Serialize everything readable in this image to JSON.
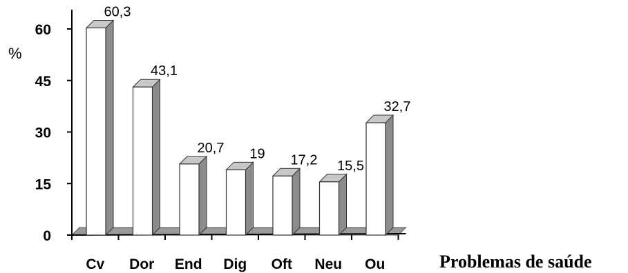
{
  "chart_data": {
    "type": "bar",
    "categories": [
      "Cv",
      "Dor",
      "End",
      "Dig",
      "Oft",
      "Neu",
      "Ou"
    ],
    "values": [
      60.3,
      43.1,
      20.7,
      19,
      17.2,
      15.5,
      32.7
    ],
    "data_labels": [
      "60,3",
      "43,1",
      "20,7",
      "19",
      "17,2",
      "15,5",
      "32,7"
    ],
    "title": "",
    "xlabel": "Problemas de saúde",
    "ylabel": "%",
    "ylim": [
      0,
      60
    ],
    "yticks": [
      "0",
      "15",
      "30",
      "45",
      "60"
    ],
    "grid": false,
    "style": "3d-column",
    "colors": {
      "bar_face": "#ffffff",
      "bar_side": "#8c8c8c",
      "bar_top": "#c8c8c8",
      "floor": "#9a9a9a",
      "axis": "#000000"
    }
  }
}
